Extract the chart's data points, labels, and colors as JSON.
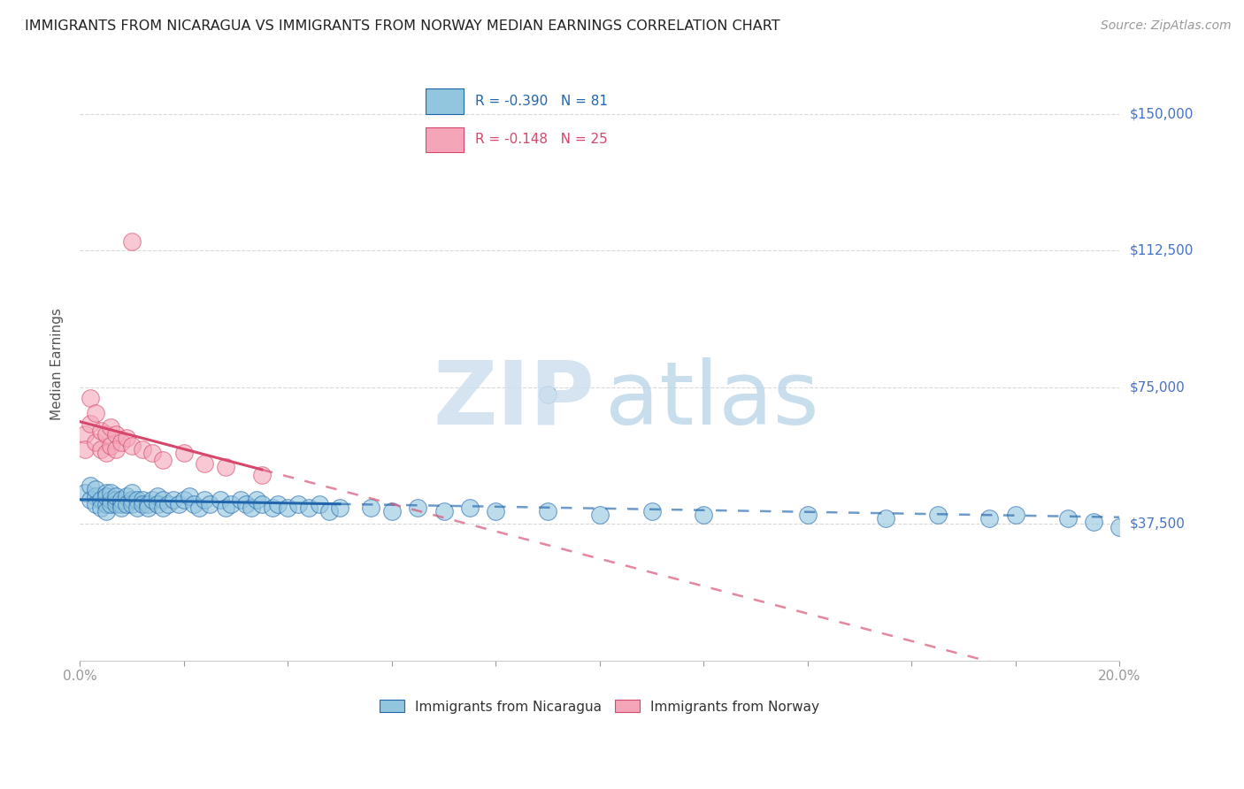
{
  "title": "IMMIGRANTS FROM NICARAGUA VS IMMIGRANTS FROM NORWAY MEDIAN EARNINGS CORRELATION CHART",
  "source": "Source: ZipAtlas.com",
  "ylabel": "Median Earnings",
  "yticks": [
    0,
    37500,
    75000,
    112500,
    150000
  ],
  "ytick_labels": [
    "",
    "$37,500",
    "$75,000",
    "$112,500",
    "$150,000"
  ],
  "xlim": [
    0.0,
    0.2
  ],
  "ylim": [
    0,
    162500
  ],
  "legend_nicaragua": "Immigrants from Nicaragua",
  "legend_norway": "Immigrants from Norway",
  "R_nicaragua": -0.39,
  "N_nicaragua": 81,
  "R_norway": -0.148,
  "N_norway": 25,
  "color_nicaragua": "#92c5de",
  "color_norway": "#f4a6b8",
  "trendline_nicaragua": "#2166ac",
  "trendline_norway": "#d6476b",
  "watermark_zip_color": "#cfe0f0",
  "watermark_atlas_color": "#b8d4e8",
  "grid_color": "#d8d8d8",
  "spine_color": "#cccccc",
  "tick_color": "#999999",
  "title_color": "#222222",
  "source_color": "#999999",
  "ylabel_color": "#555555",
  "ytick_label_color": "#4472c4",
  "xtick_label_color": "#4472c4",
  "legend_border_color": "#bbbbbb"
}
